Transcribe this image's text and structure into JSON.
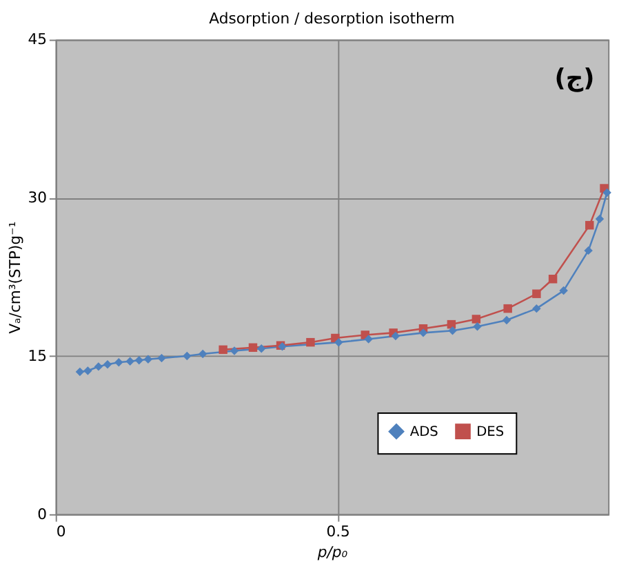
{
  "chart_data": {
    "type": "line",
    "title": "Adsorption / desorption isotherm",
    "xlabel": "p/p₀",
    "ylabel": "Vₐ/cm³(STP)g⁻¹",
    "annotations": [
      "(ج)"
    ],
    "xlim": [
      0,
      0.98
    ],
    "xticks": [
      0,
      0.5
    ],
    "ylim": [
      0,
      45
    ],
    "yticks": [
      0,
      15,
      30,
      45
    ],
    "grid": true,
    "legend": "bottom right",
    "series": [
      {
        "name": "ADS",
        "color": "#4f81bd",
        "marker": "diamond",
        "x": [
          0.043,
          0.057,
          0.076,
          0.092,
          0.112,
          0.132,
          0.148,
          0.164,
          0.188,
          0.233,
          0.261,
          0.317,
          0.365,
          0.402,
          0.502,
          0.555,
          0.603,
          0.652,
          0.704,
          0.748,
          0.8,
          0.853,
          0.901,
          0.945,
          0.965,
          0.978
        ],
        "values": [
          13.5,
          13.6,
          14.0,
          14.2,
          14.4,
          14.5,
          14.6,
          14.7,
          14.8,
          15.0,
          15.2,
          15.5,
          15.7,
          15.9,
          16.3,
          16.6,
          16.9,
          17.2,
          17.4,
          17.8,
          18.4,
          19.5,
          21.2,
          25.0,
          28.0,
          30.5
        ]
      },
      {
        "name": "DES",
        "color": "#c0504d",
        "marker": "square",
        "x": [
          0.297,
          0.35,
          0.399,
          0.452,
          0.496,
          0.549,
          0.599,
          0.652,
          0.702,
          0.746,
          0.802,
          0.853,
          0.882,
          0.947,
          0.973
        ],
        "values": [
          15.6,
          15.8,
          16.0,
          16.3,
          16.7,
          17.0,
          17.2,
          17.6,
          18.0,
          18.5,
          19.5,
          20.9,
          22.3,
          27.4,
          30.9
        ]
      }
    ]
  }
}
